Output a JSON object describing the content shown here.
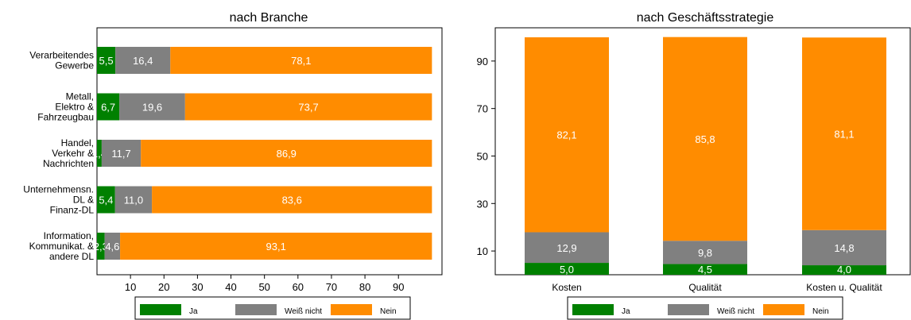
{
  "colors": {
    "ja": "#008000",
    "weiss_nicht": "#808080",
    "nein": "#ff8c00"
  },
  "chart_data": [
    {
      "type": "bar",
      "orientation": "horizontal",
      "stacked": true,
      "title": "nach Branche",
      "categories": [
        [
          "Verarbeitendes",
          "Gewerbe"
        ],
        [
          "Metall,",
          "Elektro &",
          "Fahrzeugbau"
        ],
        [
          "Handel,",
          "Verkehr &",
          "Nachrichten"
        ],
        [
          "Unternehmensn.",
          "DL &",
          "Finanz-DL"
        ],
        [
          "Information,",
          "Kommunikat. &",
          "andere DL"
        ]
      ],
      "series": [
        {
          "name": "Ja",
          "values": [
            5.5,
            6.7,
            1.4,
            5.4,
            2.3
          ],
          "labels": [
            "5,5",
            "6,7",
            "1,4",
            "5,4",
            "2,3"
          ]
        },
        {
          "name": "Weiß nicht",
          "values": [
            16.4,
            19.6,
            11.7,
            11.0,
            4.6
          ],
          "labels": [
            "16,4",
            "19,6",
            "11,7",
            "11,0",
            "4,6"
          ]
        },
        {
          "name": "Nein",
          "values": [
            78.1,
            73.7,
            86.9,
            83.6,
            93.1
          ],
          "labels": [
            "78,1",
            "73,7",
            "86,9",
            "83,6",
            "93,1"
          ]
        }
      ],
      "xticks": [
        10,
        20,
        30,
        40,
        50,
        60,
        70,
        80,
        90
      ],
      "xlim": [
        0,
        103
      ],
      "grid": false,
      "legend": "bottom"
    },
    {
      "type": "bar",
      "orientation": "vertical",
      "stacked": true,
      "title": "nach Geschäftsstrategie",
      "categories": [
        "Kosten",
        "Qualität",
        "Kosten u. Qualität"
      ],
      "series": [
        {
          "name": "Ja",
          "values": [
            5.0,
            4.5,
            4.0
          ],
          "labels": [
            "5,0",
            "4,5",
            "4,0"
          ]
        },
        {
          "name": "Weiß nicht",
          "values": [
            12.9,
            9.8,
            14.8
          ],
          "labels": [
            "12,9",
            "9,8",
            "14,8"
          ]
        },
        {
          "name": "Nein",
          "values": [
            82.1,
            85.8,
            81.1
          ],
          "labels": [
            "82,1",
            "85,8",
            "81,1"
          ]
        }
      ],
      "yticks": [
        10,
        30,
        50,
        70,
        90
      ],
      "ylim": [
        0,
        104
      ],
      "grid": false,
      "legend": "bottom"
    }
  ]
}
